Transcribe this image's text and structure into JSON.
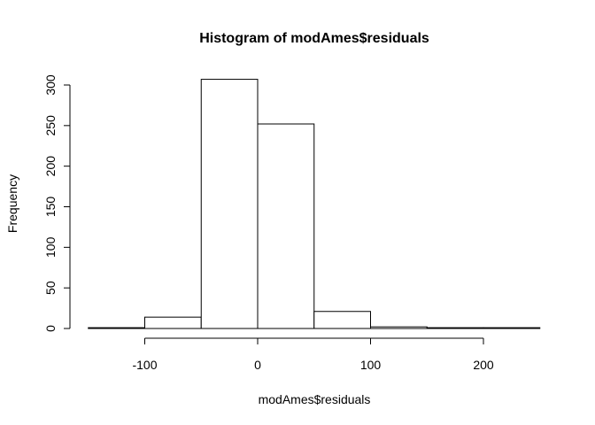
{
  "chart_data": {
    "type": "bar",
    "title": "Histogram of modAmes$residuals",
    "xlabel": "modAmes$residuals",
    "ylabel": "Frequency",
    "bins": [
      {
        "start": -150,
        "end": -100,
        "count": 1
      },
      {
        "start": -100,
        "end": -50,
        "count": 14
      },
      {
        "start": -50,
        "end": 0,
        "count": 307
      },
      {
        "start": 0,
        "end": 50,
        "count": 252
      },
      {
        "start": 50,
        "end": 100,
        "count": 21
      },
      {
        "start": 100,
        "end": 150,
        "count": 2
      },
      {
        "start": 150,
        "end": 200,
        "count": 1
      },
      {
        "start": 200,
        "end": 250,
        "count": 1
      }
    ],
    "xlim": [
      -150,
      250
    ],
    "ylim": [
      0,
      307
    ],
    "x_ticks": [
      -100,
      0,
      100,
      200
    ],
    "x_tick_labels": [
      "-100",
      "0",
      "100",
      "200"
    ],
    "y_ticks": [
      0,
      50,
      100,
      150,
      200,
      250,
      300
    ],
    "y_tick_labels": [
      "0",
      "50",
      "100",
      "150",
      "200",
      "250",
      "300"
    ],
    "grid": false,
    "legend": "none"
  }
}
